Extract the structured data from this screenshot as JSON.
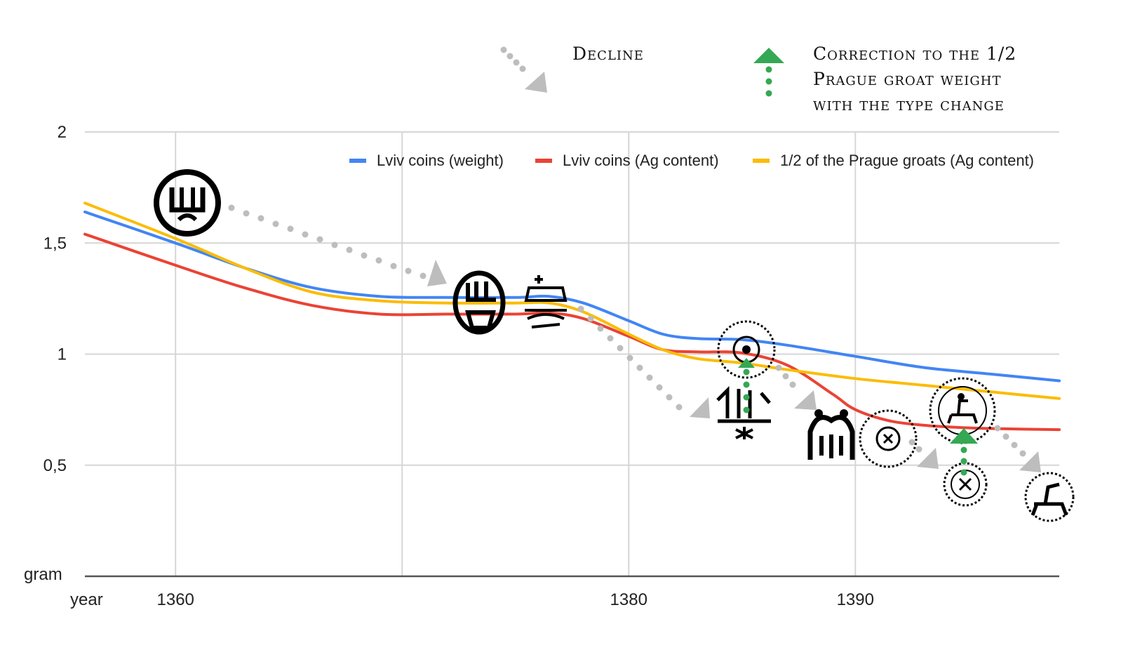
{
  "chart_data": {
    "type": "line",
    "xlabel": "year",
    "ylabel": "gram",
    "xlim": [
      1356,
      1399
    ],
    "ylim": [
      0,
      2
    ],
    "x_ticks": [
      1360,
      1380,
      1390
    ],
    "x_tick_labels": [
      "1360",
      "1380",
      "1390"
    ],
    "y_ticks": [
      0.5,
      1,
      1.5,
      2
    ],
    "y_tick_labels": [
      "0,5",
      "1",
      "1,5",
      "2"
    ],
    "grid": true,
    "legend_position": "top-right",
    "series": [
      {
        "name": "Lviv coins (weight)",
        "color": "#4285f4",
        "x": [
          1356,
          1360,
          1363,
          1366,
          1369,
          1372,
          1375,
          1376.5,
          1378,
          1380,
          1381.5,
          1383,
          1385,
          1387,
          1390,
          1393,
          1396,
          1399
        ],
        "y": [
          1.64,
          1.5,
          1.39,
          1.3,
          1.26,
          1.255,
          1.255,
          1.26,
          1.23,
          1.15,
          1.09,
          1.07,
          1.065,
          1.04,
          0.99,
          0.94,
          0.91,
          0.88
        ]
      },
      {
        "name": "Lviv coins (Ag content)",
        "color": "#ea4335",
        "x": [
          1356,
          1360,
          1363,
          1366,
          1369,
          1372,
          1375,
          1376.5,
          1378,
          1380,
          1381.5,
          1383,
          1385,
          1387,
          1389,
          1390,
          1391.5,
          1393,
          1394.5,
          1396,
          1399
        ],
        "y": [
          1.54,
          1.4,
          1.3,
          1.22,
          1.18,
          1.18,
          1.18,
          1.185,
          1.16,
          1.08,
          1.02,
          1.01,
          1.005,
          0.95,
          0.82,
          0.75,
          0.7,
          0.68,
          0.67,
          0.665,
          0.66
        ]
      },
      {
        "name": "1/2 of the Prague groats (Ag content)",
        "color": "#fbbc04",
        "x": [
          1356,
          1360,
          1363,
          1366,
          1369,
          1372,
          1375,
          1376.5,
          1378,
          1380,
          1381.5,
          1383,
          1385,
          1387,
          1390,
          1393,
          1396,
          1399
        ],
        "y": [
          1.68,
          1.52,
          1.39,
          1.28,
          1.24,
          1.23,
          1.23,
          1.23,
          1.19,
          1.09,
          1.02,
          0.98,
          0.96,
          0.93,
          0.89,
          0.86,
          0.83,
          0.8
        ]
      }
    ]
  },
  "annotations": {
    "decline_label": "Decline",
    "correction_label_lines": [
      "Correction to the 1/2",
      "Prague groat weight",
      "with the type change"
    ]
  },
  "colors": {
    "decline_arrow": "#bdbdbd",
    "correction_arrow": "#34a853",
    "grid": "#d6d6d6",
    "axis": "#555555"
  },
  "icons": {
    "coin_images": [
      "coin-1",
      "coin-2",
      "coin-3",
      "coin-4",
      "coin-5",
      "coin-6",
      "coin-7",
      "coin-8",
      "coin-9",
      "coin-10",
      "coin-11"
    ]
  }
}
